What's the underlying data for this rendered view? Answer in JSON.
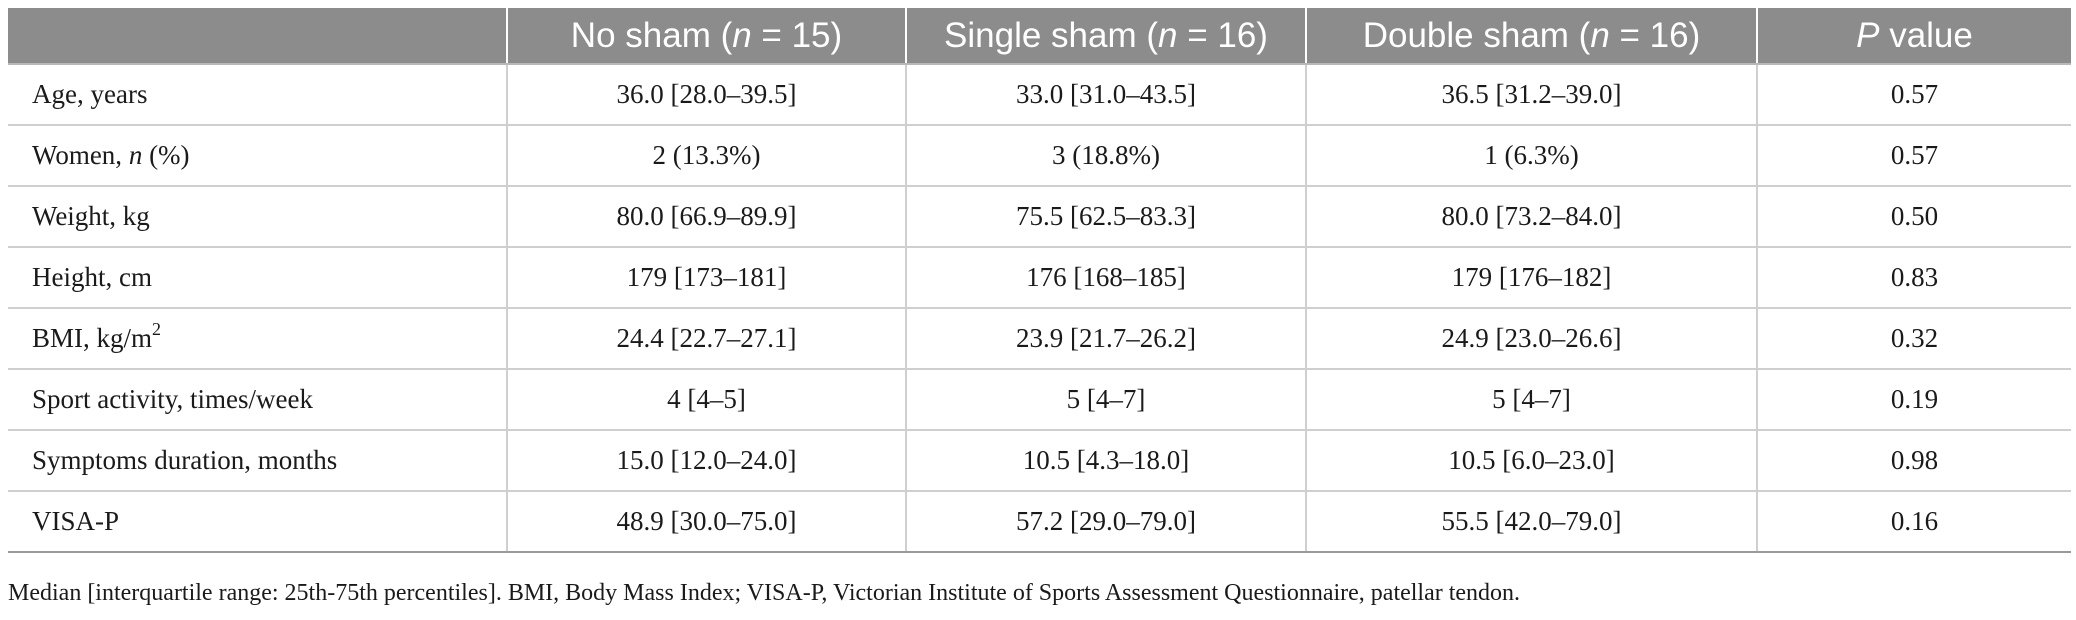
{
  "table": {
    "header": {
      "col0": "",
      "col1_pre": "No sham (",
      "col1_n": "n",
      "col1_post": " = 15)",
      "col2_pre": "Single sham (",
      "col2_n": "n",
      "col2_post": " = 16)",
      "col3_pre": "Double sham (",
      "col3_n": "n",
      "col3_post": " = 16)",
      "col4_p": "P",
      "col4_post": " value"
    },
    "rows": [
      {
        "label": "Age, years",
        "no_sham": "36.0 [28.0–39.5]",
        "single_sham": "33.0 [31.0–43.5]",
        "double_sham": "36.5 [31.2–39.0]",
        "p": "0.57"
      },
      {
        "label_pre": "Women, ",
        "label_n": "n",
        "label_post": " (%)",
        "no_sham": "2 (13.3%)",
        "single_sham": "3 (18.8%)",
        "double_sham": "1 (6.3%)",
        "p": "0.57"
      },
      {
        "label": "Weight, kg",
        "no_sham": "80.0 [66.9–89.9]",
        "single_sham": "75.5 [62.5–83.3]",
        "double_sham": "80.0 [73.2–84.0]",
        "p": "0.50"
      },
      {
        "label": "Height, cm",
        "no_sham": "179 [173–181]",
        "single_sham": "176 [168–185]",
        "double_sham": "179 [176–182]",
        "p": "0.83"
      },
      {
        "label_pre": "BMI, kg/m",
        "label_sup": "2",
        "no_sham": "24.4 [22.7–27.1]",
        "single_sham": "23.9 [21.7–26.2]",
        "double_sham": "24.9 [23.0–26.6]",
        "p": "0.32"
      },
      {
        "label": "Sport activity, times/week",
        "no_sham": "4 [4–5]",
        "single_sham": "5 [4–7]",
        "double_sham": "5 [4–7]",
        "p": "0.19"
      },
      {
        "label": "Symptoms duration, months",
        "no_sham": "15.0 [12.0–24.0]",
        "single_sham": "10.5 [4.3–18.0]",
        "double_sham": "10.5 [6.0–23.0]",
        "p": "0.98"
      },
      {
        "label": "VISA-P",
        "no_sham": "48.9 [30.0–75.0]",
        "single_sham": "57.2 [29.0–79.0]",
        "double_sham": "55.5 [42.0–79.0]",
        "p": "0.16"
      }
    ]
  },
  "footnote": "Median [interquartile range: 25th-75th percentiles]. BMI, Body Mass Index; VISA-P, Victorian Institute of Sports Assessment Questionnaire, patellar tendon."
}
